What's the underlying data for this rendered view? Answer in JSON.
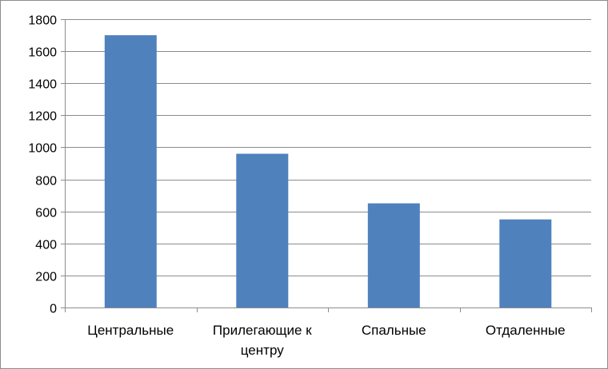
{
  "chart_data": {
    "type": "bar",
    "categories": [
      "Центральные",
      "Прилегающие к центру",
      "Спальные",
      "Отдаленные"
    ],
    "category_label_lines": [
      [
        "Центральные"
      ],
      [
        "Прилегающие к",
        "центру"
      ],
      [
        "Спальные"
      ],
      [
        "Отдаленные"
      ]
    ],
    "values": [
      1700,
      960,
      650,
      550
    ],
    "ylim": [
      0,
      1800
    ],
    "y_ticks": [
      0,
      200,
      400,
      600,
      800,
      1000,
      1200,
      1400,
      1600,
      1800
    ],
    "title": "",
    "xlabel": "",
    "ylabel": "",
    "grid": true,
    "legend": "none",
    "colors": {
      "bar": "#4f81bd",
      "grid": "#8c8c8c",
      "axis": "#8c8c8c",
      "border": "#8c8c8c"
    }
  }
}
